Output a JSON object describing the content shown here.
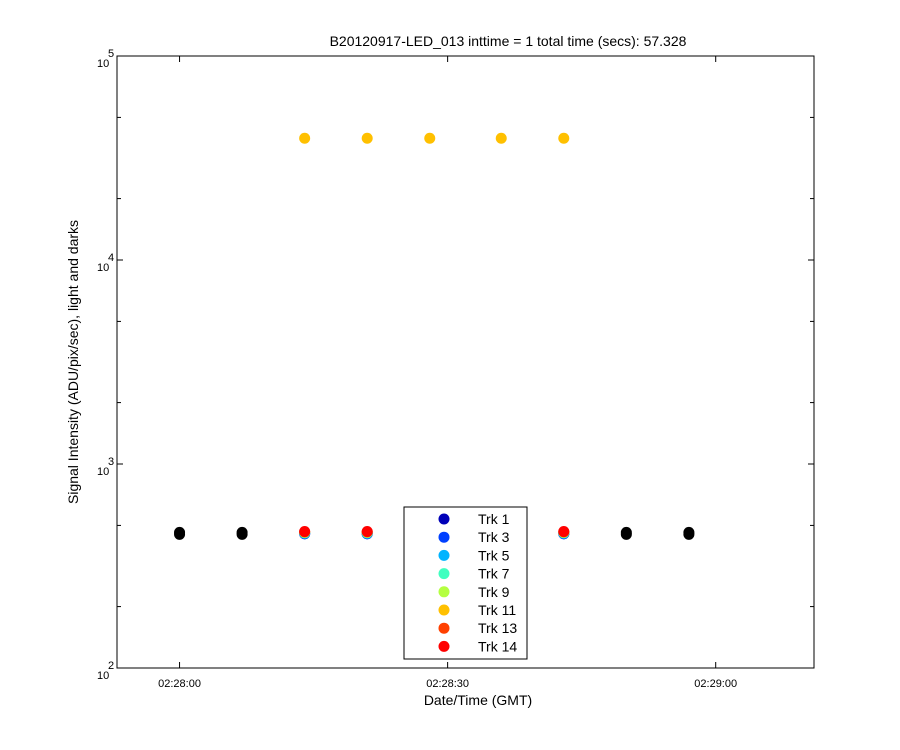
{
  "chart_data": {
    "type": "scatter",
    "title": "B20120917-LED_013 inttime = 1 total time (secs): 57.328",
    "xlabel": "Date/Time (GMT)",
    "ylabel": "Signal Intensity (ADU/pix/sec), light and darks",
    "x_scale": "time",
    "y_scale": "log",
    "xlim": [
      "02:27:53",
      "02:29:11"
    ],
    "ylim": [
      100,
      100000
    ],
    "x_ticks": [
      "02:28:00",
      "02:28:30",
      "02:29:00"
    ],
    "y_ticks": [
      {
        "base": "10",
        "exp": "2",
        "value": 100
      },
      {
        "base": "10",
        "exp": "3",
        "value": 1000
      },
      {
        "base": "10",
        "exp": "4",
        "value": 10000
      },
      {
        "base": "10",
        "exp": "5",
        "value": 100000
      }
    ],
    "grid": false,
    "legend_position": "bottom-center",
    "series": [
      {
        "name": "Trk 1",
        "color": "#0000b8",
        "x": [
          "02:28:14",
          "02:28:21",
          "02:28:43"
        ],
        "y": [
          455,
          455,
          455
        ]
      },
      {
        "name": "Trk 3",
        "color": "#0040ff",
        "x": [
          "02:28:14",
          "02:28:21",
          "02:28:43"
        ],
        "y": [
          455,
          455,
          455
        ]
      },
      {
        "name": "Trk 5",
        "color": "#00b4ff",
        "x": [
          "02:28:14",
          "02:28:21",
          "02:28:43"
        ],
        "y": [
          458,
          458,
          458
        ]
      },
      {
        "name": "Trk 7",
        "color": "#40ffc0",
        "x": [
          "02:28:14",
          "02:28:21",
          "02:28:43"
        ],
        "y": [
          460,
          460,
          460
        ]
      },
      {
        "name": "Trk 9",
        "color": "#b4ff40",
        "x": [
          "02:28:14",
          "02:28:21",
          "02:28:43"
        ],
        "y": [
          462,
          462,
          462
        ]
      },
      {
        "name": "Trk 11",
        "color": "#ffc000",
        "x": [
          "02:28:14",
          "02:28:21",
          "02:28:28",
          "02:28:36",
          "02:28:43"
        ],
        "y": [
          39500,
          39500,
          39500,
          39500,
          39500
        ]
      },
      {
        "name": "Trk 13",
        "color": "#ff4000",
        "x": [
          "02:28:14",
          "02:28:21",
          "02:28:43"
        ],
        "y": [
          465,
          465,
          465
        ]
      },
      {
        "name": "Trk 14",
        "color": "#ff0000",
        "x": [
          "02:28:14",
          "02:28:21",
          "02:28:43"
        ],
        "y": [
          467,
          467,
          467
        ]
      },
      {
        "color": "#000000",
        "x": [
          "02:28:00",
          "02:28:07",
          "02:28:50",
          "02:28:57"
        ],
        "y": [
          452,
          452,
          452,
          452
        ]
      },
      {
        "color": "#000000",
        "x": [
          "02:28:00",
          "02:28:07",
          "02:28:50",
          "02:28:57"
        ],
        "y": [
          462,
          462,
          462,
          462
        ]
      }
    ]
  }
}
